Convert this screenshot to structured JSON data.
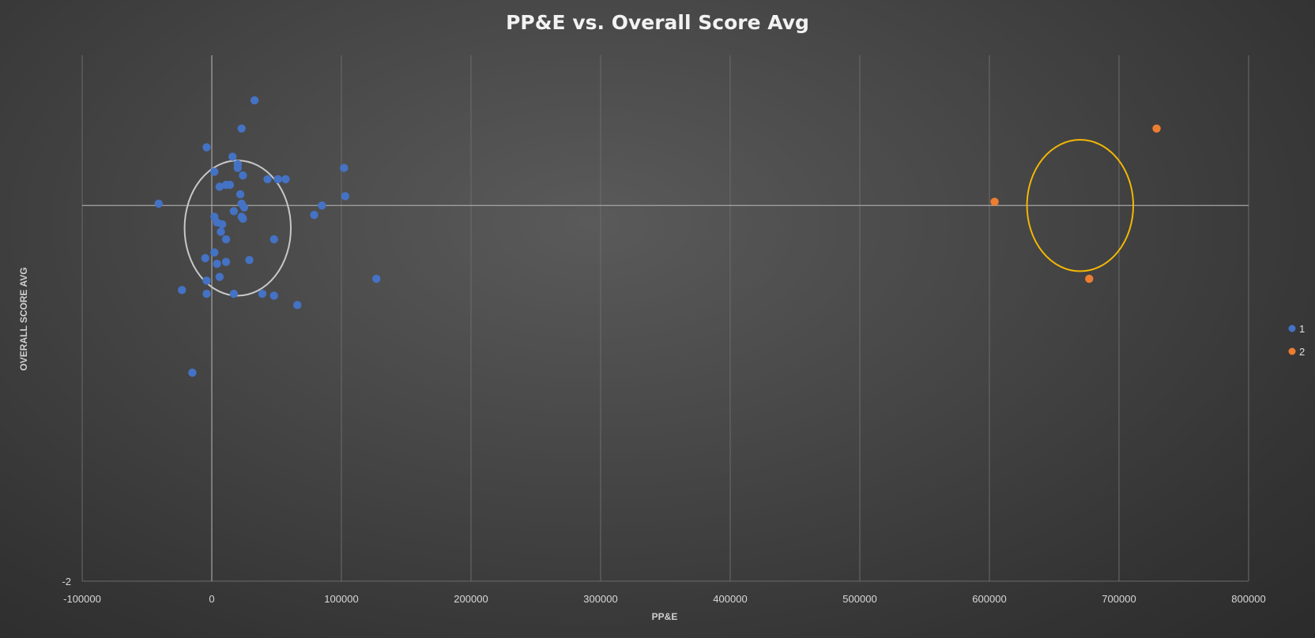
{
  "chart_data": {
    "type": "scatter",
    "title": "PP&E vs. Overall Score Avg",
    "xlabel": "PP&E",
    "ylabel": "OVERALL SCORE AVG",
    "xlim": [
      -100000,
      800000
    ],
    "ylim": [
      -2,
      0.8
    ],
    "x_ticks": [
      -100000,
      0,
      100000,
      200000,
      300000,
      400000,
      500000,
      600000,
      700000,
      800000
    ],
    "x_tick_labels": [
      "-100000",
      "0",
      "100000",
      "200000",
      "300000",
      "400000",
      "500000",
      "600000",
      "700000",
      "800000"
    ],
    "y_tick_labels": [
      {
        "value": -2,
        "label": "-2"
      }
    ],
    "grid": "vertical",
    "legend_position": "right",
    "series": [
      {
        "name": "1",
        "color": "#4472c4",
        "points": [
          {
            "x": 33000,
            "y": 0.56
          },
          {
            "x": 23000,
            "y": 0.41
          },
          {
            "x": -4000,
            "y": 0.31
          },
          {
            "x": 16000,
            "y": 0.26
          },
          {
            "x": 20000,
            "y": 0.22
          },
          {
            "x": 20000,
            "y": 0.2
          },
          {
            "x": 2000,
            "y": 0.18
          },
          {
            "x": 24000,
            "y": 0.16
          },
          {
            "x": 43000,
            "y": 0.14
          },
          {
            "x": 51000,
            "y": 0.14
          },
          {
            "x": 57000,
            "y": 0.14
          },
          {
            "x": 11000,
            "y": 0.11
          },
          {
            "x": 14000,
            "y": 0.11
          },
          {
            "x": 6000,
            "y": 0.1
          },
          {
            "x": 22000,
            "y": 0.06
          },
          {
            "x": 102000,
            "y": 0.2
          },
          {
            "x": 103000,
            "y": 0.05
          },
          {
            "x": -41000,
            "y": 0.01
          },
          {
            "x": 23000,
            "y": 0.01
          },
          {
            "x": 25000,
            "y": -0.01
          },
          {
            "x": 85000,
            "y": 0.0
          },
          {
            "x": 17000,
            "y": -0.03
          },
          {
            "x": 79000,
            "y": -0.05
          },
          {
            "x": 2000,
            "y": -0.06
          },
          {
            "x": 23000,
            "y": -0.06
          },
          {
            "x": 24000,
            "y": -0.07
          },
          {
            "x": 4000,
            "y": -0.09
          },
          {
            "x": 8000,
            "y": -0.1
          },
          {
            "x": 7000,
            "y": -0.14
          },
          {
            "x": 11000,
            "y": -0.18
          },
          {
            "x": 48000,
            "y": -0.18
          },
          {
            "x": 2000,
            "y": -0.25
          },
          {
            "x": -5000,
            "y": -0.28
          },
          {
            "x": 29000,
            "y": -0.29
          },
          {
            "x": 4000,
            "y": -0.31
          },
          {
            "x": 11000,
            "y": -0.3
          },
          {
            "x": 127000,
            "y": -0.39
          },
          {
            "x": 6000,
            "y": -0.38
          },
          {
            "x": -4000,
            "y": -0.4
          },
          {
            "x": -23000,
            "y": -0.45
          },
          {
            "x": -4000,
            "y": -0.47
          },
          {
            "x": 17000,
            "y": -0.47
          },
          {
            "x": 39000,
            "y": -0.47
          },
          {
            "x": 48000,
            "y": -0.48
          },
          {
            "x": 66000,
            "y": -0.53
          },
          {
            "x": -15000,
            "y": -0.89
          }
        ]
      },
      {
        "name": "2",
        "color": "#ed7d31",
        "points": [
          {
            "x": 729000,
            "y": 0.41
          },
          {
            "x": 604000,
            "y": 0.02
          },
          {
            "x": 677000,
            "y": -0.39
          }
        ]
      }
    ],
    "annotations": [
      {
        "shape": "ellipse",
        "color": "#c8c8c8",
        "center_x": 20000,
        "center_y": -0.12,
        "radius_x": 41000,
        "radius_y": 0.36
      },
      {
        "shape": "ellipse",
        "color": "#f2b705",
        "center_x": 670000,
        "center_y": 0.0,
        "radius_x": 41000,
        "radius_y": 0.35
      }
    ]
  },
  "colors": {
    "series_1": "#4472c4",
    "series_2": "#ed7d31",
    "gridline": "#6b6b6b",
    "axis_line": "#a6a6a6",
    "ellipse_1": "#c8c8c8",
    "ellipse_2": "#f2b705"
  }
}
